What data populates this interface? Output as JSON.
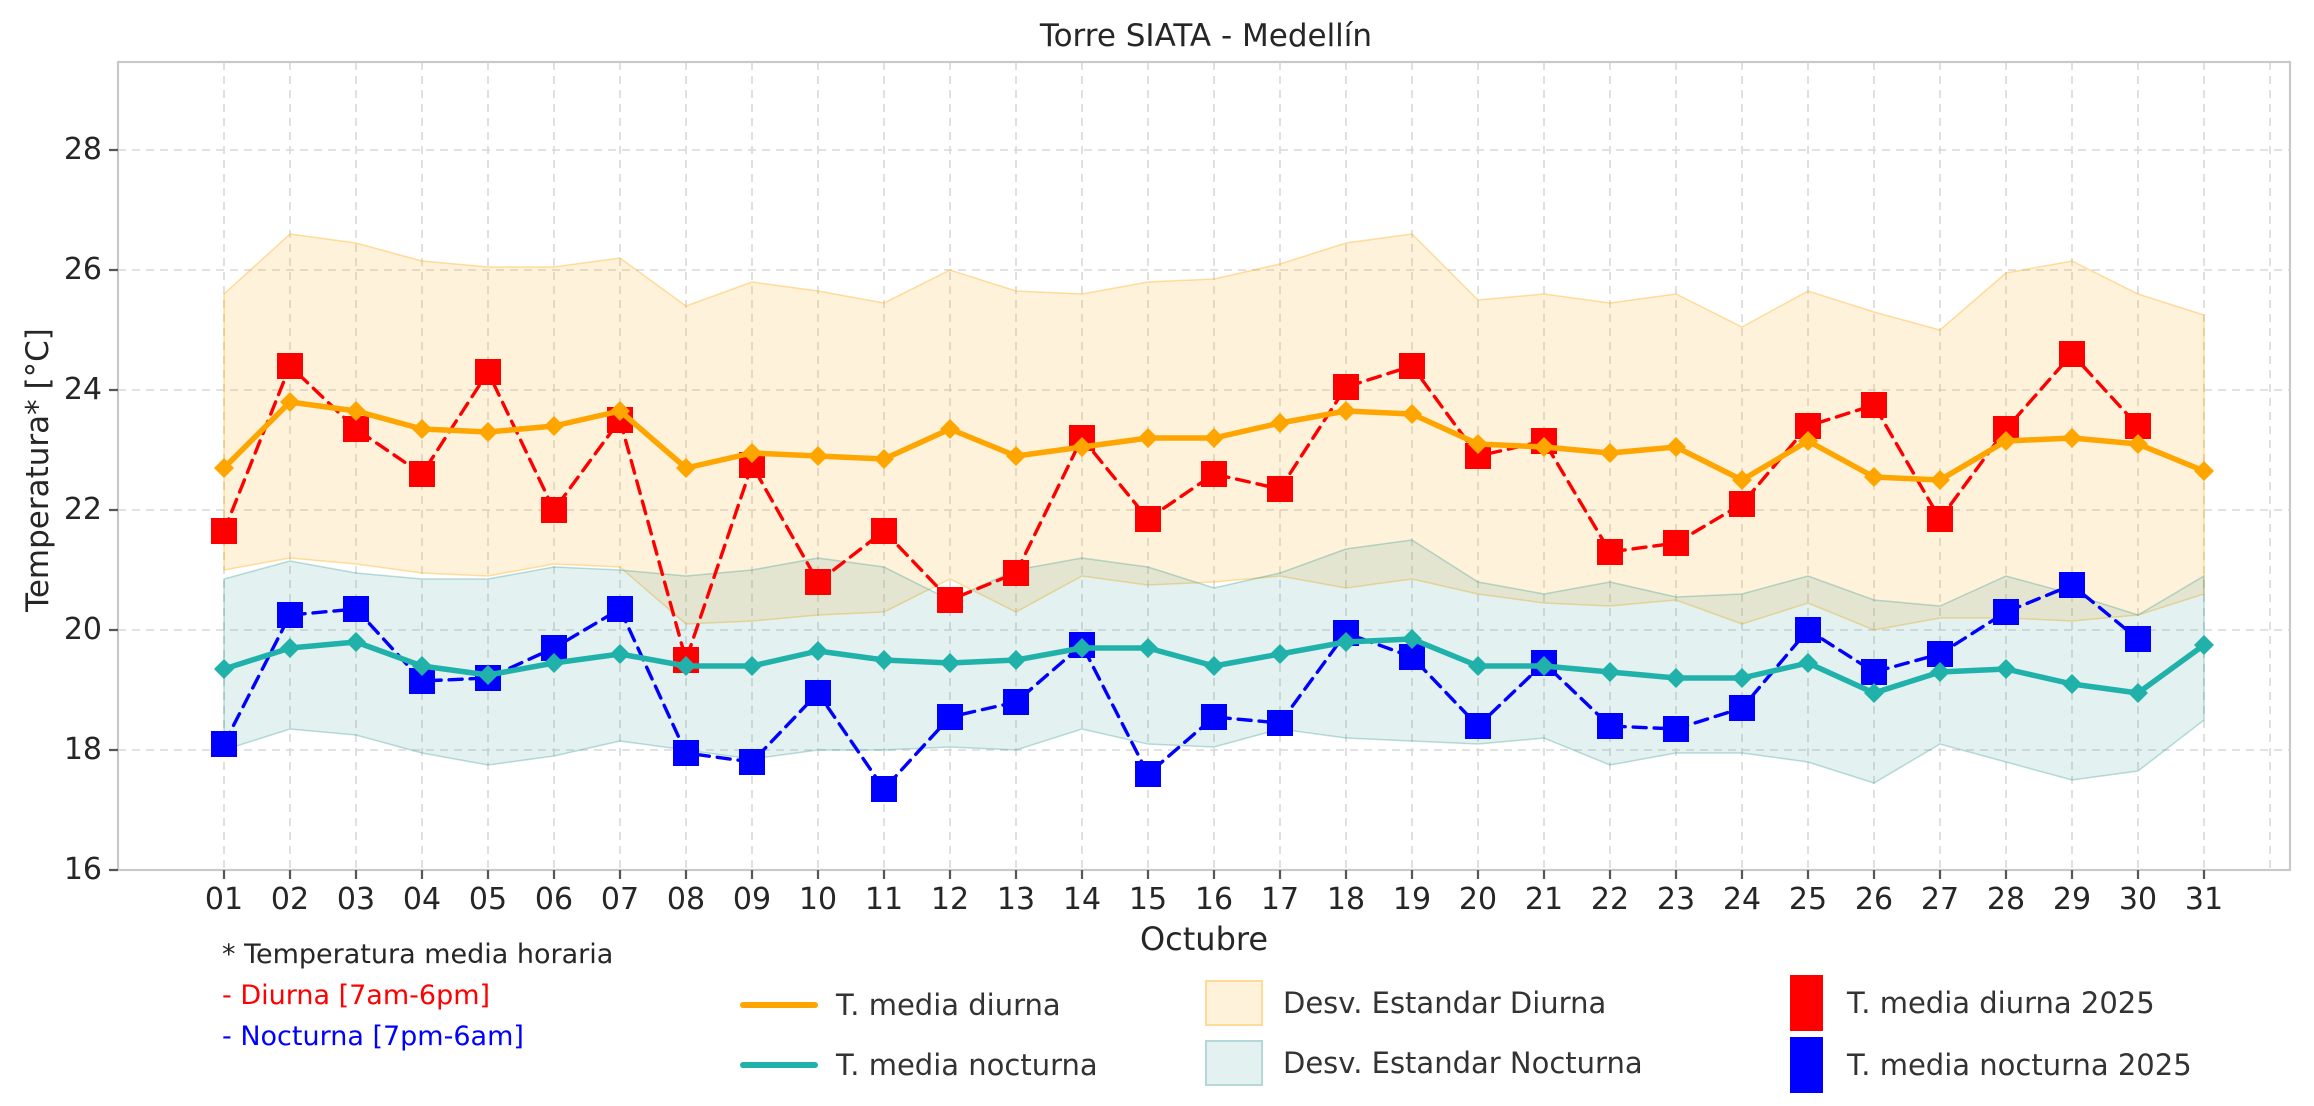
{
  "title": "Torre SIATA - Medellín",
  "footnote": {
    "line1": "* Temperatura media horaria",
    "line2": "- Diurna [7am-6pm]",
    "line3": "- Nocturna [7pm-6am]"
  },
  "colors": {
    "diurna_line": "#FFA500",
    "nocturna_line": "#20B2AA",
    "diurna_2025": "#FF0000",
    "nocturna_2025": "#0000FF",
    "band_diurna_fill": "rgba(255,165,0,0.14)",
    "band_diurna_edge": "rgba(255,165,0,0.35)",
    "band_nocturna_fill": "rgba(38,145,140,0.13)",
    "band_nocturna_edge": "rgba(38,145,140,0.30)",
    "grid": "#d9d9d9",
    "spine": "#c9c9c9",
    "text": "#262626"
  },
  "chart_data": {
    "type": "line",
    "title": "Torre SIATA - Medellín",
    "xlabel": "Octubre",
    "ylabel": "Temperatura* [°C]",
    "grid": true,
    "legend_position": "bottom",
    "x": [
      1,
      2,
      3,
      4,
      5,
      6,
      7,
      8,
      9,
      10,
      11,
      12,
      13,
      14,
      15,
      16,
      17,
      18,
      19,
      20,
      21,
      22,
      23,
      24,
      25,
      26,
      27,
      28,
      29,
      30,
      31
    ],
    "x_tick_labels": [
      "01",
      "02",
      "03",
      "04",
      "05",
      "06",
      "07",
      "08",
      "09",
      "10",
      "11",
      "12",
      "13",
      "14",
      "15",
      "16",
      "17",
      "18",
      "19",
      "20",
      "21",
      "22",
      "23",
      "24",
      "25",
      "26",
      "27",
      "28",
      "29",
      "30",
      "31"
    ],
    "y_ticks": [
      16,
      18,
      20,
      22,
      24,
      26,
      28
    ],
    "ylim": [
      16,
      29.47
    ],
    "series": [
      {
        "name": "T. media diurna",
        "style": "solid",
        "marker": "diamond",
        "color": "#FFA500",
        "values": [
          22.7,
          23.8,
          23.65,
          23.35,
          23.3,
          23.4,
          23.65,
          22.7,
          22.95,
          22.9,
          22.85,
          23.35,
          22.9,
          23.05,
          23.2,
          23.2,
          23.45,
          23.65,
          23.6,
          23.1,
          23.05,
          22.95,
          23.05,
          22.5,
          23.15,
          22.55,
          22.5,
          23.15,
          23.2,
          23.1,
          22.65
        ]
      },
      {
        "name": "T. media nocturna",
        "style": "solid",
        "marker": "diamond",
        "color": "#20B2AA",
        "values": [
          19.35,
          19.7,
          19.8,
          19.4,
          19.25,
          19.45,
          19.6,
          19.4,
          19.4,
          19.65,
          19.5,
          19.45,
          19.5,
          19.7,
          19.7,
          19.4,
          19.6,
          19.8,
          19.85,
          19.4,
          19.4,
          19.3,
          19.2,
          19.2,
          19.45,
          18.95,
          19.3,
          19.35,
          19.1,
          18.95,
          19.75
        ]
      },
      {
        "name": "T. media diurna 2025",
        "style": "dashed",
        "marker": "square",
        "color": "#FF0000",
        "values": [
          21.65,
          24.4,
          23.35,
          22.6,
          24.3,
          22.0,
          23.5,
          19.5,
          22.75,
          20.8,
          21.65,
          20.5,
          20.95,
          23.2,
          21.85,
          22.6,
          22.35,
          24.05,
          24.4,
          22.9,
          23.15,
          21.3,
          21.45,
          22.1,
          23.4,
          23.75,
          21.85,
          23.35,
          24.6,
          23.4
        ]
      },
      {
        "name": "T. media nocturna 2025",
        "style": "dashed",
        "marker": "square",
        "color": "#0000FF",
        "values": [
          18.1,
          20.25,
          20.35,
          19.15,
          19.2,
          19.7,
          20.35,
          17.95,
          17.8,
          18.95,
          17.35,
          18.55,
          18.8,
          19.75,
          17.6,
          18.55,
          18.45,
          19.95,
          19.55,
          18.4,
          19.45,
          18.4,
          18.35,
          18.7,
          20.0,
          19.3,
          19.6,
          20.3,
          20.75,
          19.85
        ]
      }
    ],
    "bands": [
      {
        "name": "Desv. Estandar Diurna",
        "upper": [
          25.6,
          26.6,
          26.45,
          26.15,
          26.05,
          26.05,
          26.2,
          25.4,
          25.8,
          25.65,
          25.45,
          26.0,
          25.65,
          25.6,
          25.8,
          25.85,
          26.1,
          26.45,
          26.6,
          25.5,
          25.6,
          25.45,
          25.6,
          25.05,
          25.65,
          25.3,
          25.0,
          25.95,
          26.15,
          25.6,
          25.25
        ],
        "lower": [
          21.0,
          21.2,
          21.1,
          20.95,
          20.9,
          21.1,
          21.05,
          20.1,
          20.15,
          20.25,
          20.3,
          20.85,
          20.3,
          20.9,
          20.75,
          20.8,
          20.9,
          20.7,
          20.85,
          20.6,
          20.45,
          20.4,
          20.5,
          20.1,
          20.45,
          20.0,
          20.2,
          20.2,
          20.15,
          20.25,
          20.6
        ]
      },
      {
        "name": "Desv. Estandar Nocturna",
        "upper": [
          20.85,
          21.15,
          20.95,
          20.85,
          20.85,
          21.05,
          21.0,
          20.9,
          21.0,
          21.2,
          21.05,
          20.5,
          21.0,
          21.2,
          21.05,
          20.7,
          20.95,
          21.35,
          21.5,
          20.8,
          20.6,
          20.8,
          20.55,
          20.6,
          20.9,
          20.5,
          20.4,
          20.9,
          20.6,
          20.25,
          20.9
        ],
        "lower": [
          18.0,
          18.35,
          18.25,
          17.95,
          17.75,
          17.9,
          18.15,
          18.0,
          17.85,
          18.0,
          18.0,
          18.05,
          18.0,
          18.35,
          18.1,
          18.05,
          18.35,
          18.2,
          18.15,
          18.1,
          18.2,
          17.75,
          17.95,
          17.95,
          17.8,
          17.45,
          18.1,
          17.8,
          17.5,
          17.65,
          18.5
        ]
      }
    ]
  }
}
